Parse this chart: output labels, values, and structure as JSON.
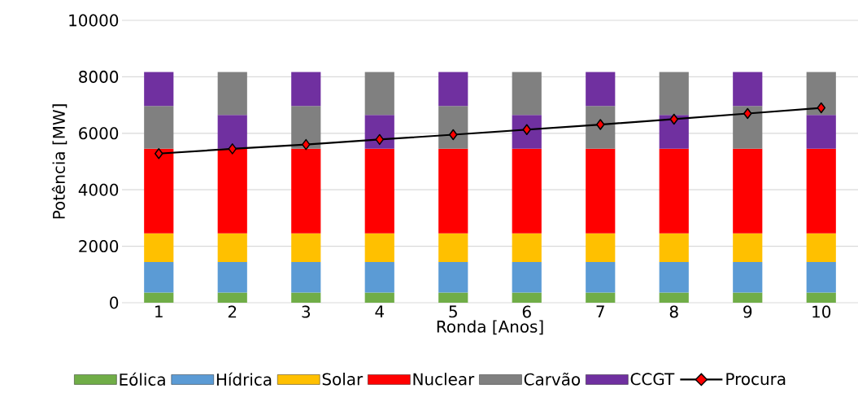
{
  "chart_data": {
    "type": "bar",
    "stacked": true,
    "xlabel": "Ronda [Anos]",
    "ylabel": "Potência [MW]",
    "categories": [
      "1",
      "2",
      "3",
      "4",
      "5",
      "6",
      "7",
      "8",
      "9",
      "10"
    ],
    "ylim": [
      0,
      10000
    ],
    "yticks": [
      0,
      2000,
      4000,
      6000,
      8000,
      10000
    ],
    "grid": "y",
    "legend": "bottom",
    "marker": "diamond",
    "series": [
      {
        "name": "Eólica",
        "color": "#70ad47",
        "values": [
          360,
          360,
          360,
          360,
          360,
          360,
          360,
          360,
          360,
          360
        ]
      },
      {
        "name": "Hídrica",
        "color": "#5b9bd5",
        "values": [
          1080,
          1080,
          1080,
          1080,
          1080,
          1080,
          1080,
          1080,
          1080,
          1080
        ]
      },
      {
        "name": "Solar",
        "color": "#ffc000",
        "values": [
          1020,
          1020,
          1020,
          1020,
          1020,
          1020,
          1020,
          1020,
          1020,
          1020
        ]
      },
      {
        "name": "Nuclear",
        "color": "#ff0000",
        "values": [
          2990,
          2990,
          2990,
          2990,
          2990,
          2990,
          2990,
          2990,
          2990,
          2990
        ]
      },
      {
        "name": "Carvão",
        "color": "#808080",
        "values": [
          1520,
          null,
          1520,
          null,
          1520,
          null,
          1520,
          null,
          1520,
          null
        ]
      },
      {
        "name": "CCGT",
        "color": "#7030a0",
        "values": [
          1200,
          1200,
          1200,
          1200,
          1200,
          1200,
          1200,
          1200,
          1200,
          1200
        ]
      },
      {
        "color": "#808080",
        "values": [
          null,
          1520,
          null,
          1520,
          null,
          1520,
          null,
          1520,
          null,
          1520
        ]
      },
      {
        "name": "Procura",
        "type": "line",
        "color": "#000000",
        "values": [
          5280,
          5450,
          5600,
          5780,
          5950,
          6130,
          6310,
          6500,
          6700,
          6900
        ]
      }
    ]
  }
}
